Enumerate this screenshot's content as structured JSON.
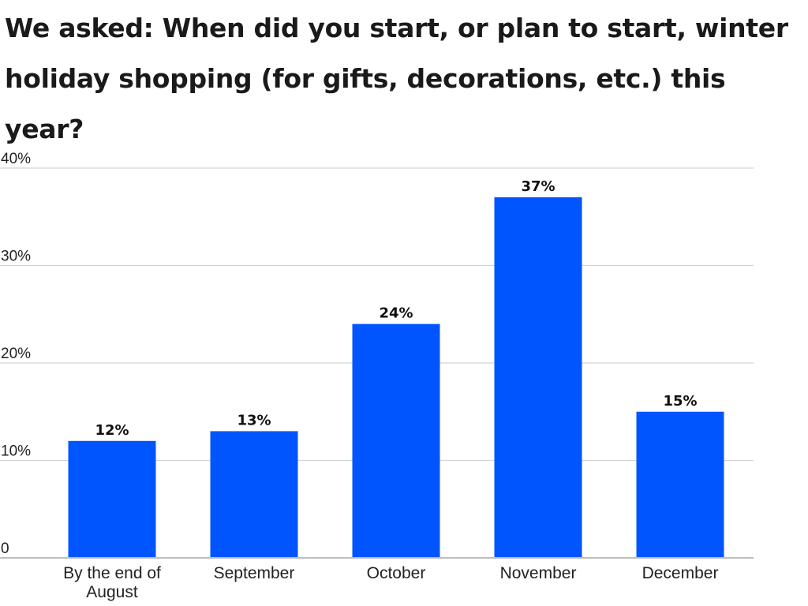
{
  "chart_data": {
    "type": "bar",
    "title": "We asked: When did you start, or plan to start, winter holiday shopping (for gifts, decorations, etc.) this year?",
    "categories": [
      "By the end of August",
      "September",
      "October",
      "November",
      "December"
    ],
    "category_lines": [
      [
        "By the end of",
        "August"
      ],
      [
        "September"
      ],
      [
        "October"
      ],
      [
        "November"
      ],
      [
        "December"
      ]
    ],
    "values": [
      12,
      13,
      24,
      37,
      15
    ],
    "data_labels": [
      "12%",
      "13%",
      "24%",
      "37%",
      "15%"
    ],
    "y_ticks": [
      0,
      10,
      20,
      30,
      40
    ],
    "y_tick_labels": [
      "0",
      "10%",
      "20%",
      "30%",
      "40%"
    ],
    "ylim": [
      0,
      40
    ],
    "xlabel": "",
    "ylabel": "",
    "grid": true,
    "legend": "none",
    "bar_color": "#0055ff"
  }
}
